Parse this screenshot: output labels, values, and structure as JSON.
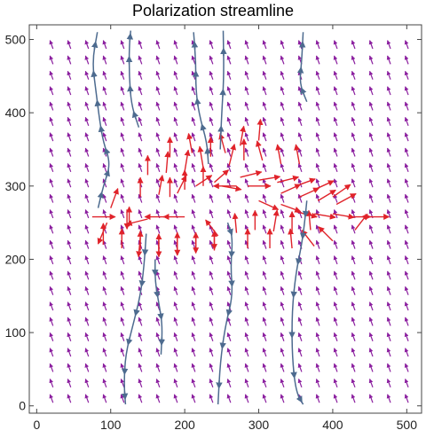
{
  "chart_data": {
    "type": "vector_field",
    "title": "Polarization streamline",
    "xlabel": "",
    "ylabel": "",
    "xlim": [
      -10,
      520
    ],
    "ylim": [
      -10,
      520
    ],
    "x_ticks": [
      0,
      100,
      200,
      300,
      400,
      500
    ],
    "y_ticks": [
      0,
      100,
      200,
      300,
      400,
      500
    ],
    "grid": false,
    "colors": {
      "background_field": "#8b1f9f",
      "strong_field": "#e0232a",
      "streamline": "#4d6b8f",
      "frame": "#444444"
    },
    "field_grid": {
      "x_start": 20,
      "x_end": 500,
      "x_step": 24,
      "y_start": 10,
      "y_end": 510,
      "y_step": 21,
      "background_angle_deg": 110
    },
    "strong_vectors": [
      {
        "x": 75,
        "y": 258,
        "dx": 26,
        "dy": 0
      },
      {
        "x": 95,
        "y": 250,
        "dx": -10,
        "dy": -24
      },
      {
        "x": 100,
        "y": 270,
        "dx": 8,
        "dy": 22
      },
      {
        "x": 122,
        "y": 268,
        "dx": 0,
        "dy": -22
      },
      {
        "x": 125,
        "y": 245,
        "dx": 0,
        "dy": 22
      },
      {
        "x": 150,
        "y": 255,
        "dx": -24,
        "dy": -6
      },
      {
        "x": 175,
        "y": 258,
        "dx": -24,
        "dy": 0
      },
      {
        "x": 200,
        "y": 258,
        "dx": -24,
        "dy": 0
      },
      {
        "x": 140,
        "y": 230,
        "dx": -2,
        "dy": -22
      },
      {
        "x": 165,
        "y": 230,
        "dx": 0,
        "dy": -22
      },
      {
        "x": 190,
        "y": 232,
        "dx": 0,
        "dy": -22
      },
      {
        "x": 215,
        "y": 235,
        "dx": 0,
        "dy": -22
      },
      {
        "x": 240,
        "y": 240,
        "dx": 0,
        "dy": -22
      },
      {
        "x": 140,
        "y": 285,
        "dx": 0,
        "dy": 22
      },
      {
        "x": 165,
        "y": 288,
        "dx": 4,
        "dy": 22
      },
      {
        "x": 190,
        "y": 290,
        "dx": 10,
        "dy": 20
      },
      {
        "x": 215,
        "y": 300,
        "dx": 18,
        "dy": 12
      },
      {
        "x": 240,
        "y": 305,
        "dx": 16,
        "dy": 14
      },
      {
        "x": 150,
        "y": 315,
        "dx": 0,
        "dy": 22
      },
      {
        "x": 175,
        "y": 318,
        "dx": 2,
        "dy": 24
      },
      {
        "x": 200,
        "y": 320,
        "dx": 4,
        "dy": 24
      },
      {
        "x": 225,
        "y": 325,
        "dx": -4,
        "dy": 24
      },
      {
        "x": 180,
        "y": 340,
        "dx": 0,
        "dy": 22
      },
      {
        "x": 210,
        "y": 345,
        "dx": -4,
        "dy": 22
      },
      {
        "x": 235,
        "y": 340,
        "dx": 0,
        "dy": 22
      },
      {
        "x": 260,
        "y": 328,
        "dx": 6,
        "dy": 24
      },
      {
        "x": 255,
        "y": 345,
        "dx": -6,
        "dy": 22
      },
      {
        "x": 280,
        "y": 335,
        "dx": 0,
        "dy": 24
      },
      {
        "x": 305,
        "y": 335,
        "dx": -6,
        "dy": 22
      },
      {
        "x": 330,
        "y": 330,
        "dx": -4,
        "dy": 22
      },
      {
        "x": 355,
        "y": 330,
        "dx": -4,
        "dy": 22
      },
      {
        "x": 275,
        "y": 355,
        "dx": 4,
        "dy": 22
      },
      {
        "x": 300,
        "y": 362,
        "dx": 2,
        "dy": 24
      },
      {
        "x": 275,
        "y": 312,
        "dx": 24,
        "dy": 6
      },
      {
        "x": 300,
        "y": 308,
        "dx": 24,
        "dy": 4
      },
      {
        "x": 325,
        "y": 305,
        "dx": 24,
        "dy": 6
      },
      {
        "x": 350,
        "y": 300,
        "dx": 22,
        "dy": 8
      },
      {
        "x": 375,
        "y": 295,
        "dx": 22,
        "dy": 10
      },
      {
        "x": 400,
        "y": 285,
        "dx": 20,
        "dy": 14
      },
      {
        "x": 300,
        "y": 280,
        "dx": 22,
        "dy": -10
      },
      {
        "x": 330,
        "y": 275,
        "dx": 22,
        "dy": -8
      },
      {
        "x": 350,
        "y": 265,
        "dx": 24,
        "dy": -6
      },
      {
        "x": 375,
        "y": 262,
        "dx": 24,
        "dy": -4
      },
      {
        "x": 400,
        "y": 262,
        "dx": 24,
        "dy": -4
      },
      {
        "x": 420,
        "y": 258,
        "dx": 26,
        "dy": 0
      },
      {
        "x": 445,
        "y": 258,
        "dx": 26,
        "dy": 0
      },
      {
        "x": 245,
        "y": 232,
        "dx": -14,
        "dy": 18
      },
      {
        "x": 270,
        "y": 236,
        "dx": -2,
        "dy": 22
      },
      {
        "x": 295,
        "y": 240,
        "dx": 0,
        "dy": 22
      },
      {
        "x": 320,
        "y": 238,
        "dx": 4,
        "dy": 24
      },
      {
        "x": 345,
        "y": 236,
        "dx": 0,
        "dy": 24
      },
      {
        "x": 370,
        "y": 240,
        "dx": -2,
        "dy": 22
      },
      {
        "x": 285,
        "y": 215,
        "dx": 0,
        "dy": 22
      },
      {
        "x": 315,
        "y": 215,
        "dx": 0,
        "dy": 22
      },
      {
        "x": 345,
        "y": 215,
        "dx": -2,
        "dy": 22
      },
      {
        "x": 375,
        "y": 218,
        "dx": -14,
        "dy": 18
      },
      {
        "x": 400,
        "y": 225,
        "dx": -16,
        "dy": 16
      },
      {
        "x": 90,
        "y": 220,
        "dx": 0,
        "dy": 24
      },
      {
        "x": 115,
        "y": 215,
        "dx": 0,
        "dy": 22
      },
      {
        "x": 140,
        "y": 212,
        "dx": 0,
        "dy": 22
      },
      {
        "x": 165,
        "y": 208,
        "dx": 0,
        "dy": 22
      },
      {
        "x": 190,
        "y": 210,
        "dx": 0,
        "dy": 22
      },
      {
        "x": 215,
        "y": 210,
        "dx": 0,
        "dy": 22
      },
      {
        "x": 240,
        "y": 212,
        "dx": 0,
        "dy": 22
      },
      {
        "x": 180,
        "y": 285,
        "dx": 0,
        "dy": 22
      },
      {
        "x": 200,
        "y": 295,
        "dx": 0,
        "dy": 22
      },
      {
        "x": 225,
        "y": 300,
        "dx": 0,
        "dy": 22
      },
      {
        "x": 250,
        "y": 300,
        "dx": 22,
        "dy": -4
      },
      {
        "x": 270,
        "y": 300,
        "dx": -26,
        "dy": 0
      },
      {
        "x": 285,
        "y": 300,
        "dx": 26,
        "dy": 0
      },
      {
        "x": 330,
        "y": 290,
        "dx": 22,
        "dy": 10
      },
      {
        "x": 355,
        "y": 285,
        "dx": 22,
        "dy": 10
      },
      {
        "x": 380,
        "y": 280,
        "dx": 20,
        "dy": 12
      },
      {
        "x": 405,
        "y": 275,
        "dx": 22,
        "dy": 12
      },
      {
        "x": 430,
        "y": 240,
        "dx": 14,
        "dy": 18
      }
    ],
    "streamlines": [
      [
        [
          83,
          270
        ],
        [
          90,
          300
        ],
        [
          100,
          330
        ],
        [
          90,
          360
        ],
        [
          85,
          390
        ],
        [
          80,
          430
        ],
        [
          75,
          470
        ],
        [
          82,
          510
        ]
      ],
      [
        [
          138,
          380
        ],
        [
          128,
          410
        ],
        [
          125,
          450
        ],
        [
          125,
          490
        ],
        [
          127,
          512
        ]
      ],
      [
        [
          148,
          235
        ],
        [
          145,
          190
        ],
        [
          140,
          150
        ],
        [
          130,
          110
        ],
        [
          120,
          70
        ],
        [
          118,
          30
        ],
        [
          120,
          2
        ]
      ],
      [
        [
          160,
          200
        ],
        [
          160,
          170
        ],
        [
          165,
          140
        ],
        [
          170,
          110
        ],
        [
          168,
          70
        ]
      ],
      [
        [
          232,
          330
        ],
        [
          230,
          360
        ],
        [
          220,
          395
        ],
        [
          215,
          430
        ],
        [
          215,
          470
        ],
        [
          212,
          510
        ]
      ],
      [
        [
          248,
          350
        ],
        [
          250,
          400
        ],
        [
          253,
          450
        ],
        [
          252,
          512
        ]
      ],
      [
        [
          258,
          250
        ],
        [
          265,
          230
        ],
        [
          262,
          190
        ],
        [
          265,
          150
        ],
        [
          255,
          110
        ],
        [
          248,
          60
        ],
        [
          245,
          2
        ]
      ],
      [
        [
          365,
          415
        ],
        [
          355,
          440
        ],
        [
          358,
          470
        ],
        [
          360,
          510
        ]
      ],
      [
        [
          365,
          280
        ],
        [
          362,
          250
        ],
        [
          358,
          220
        ],
        [
          350,
          180
        ],
        [
          345,
          130
        ],
        [
          345,
          70
        ],
        [
          350,
          20
        ],
        [
          360,
          2
        ]
      ]
    ]
  }
}
